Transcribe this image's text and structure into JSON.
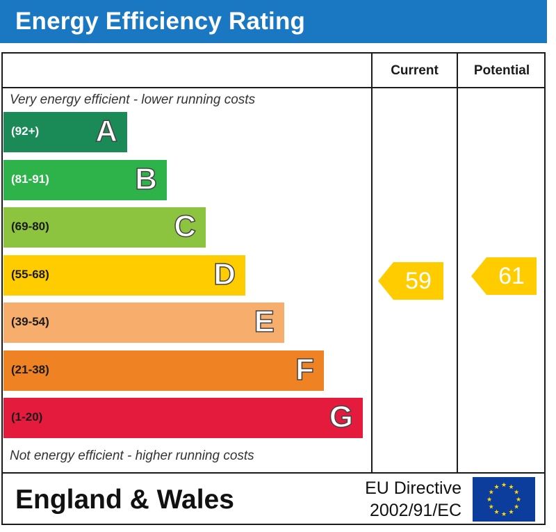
{
  "title": "Energy Efficiency Rating",
  "columns": {
    "current": "Current",
    "potential": "Potential"
  },
  "notes": {
    "top": "Very energy efficient - lower running costs",
    "bottom": "Not energy efficient - higher running costs"
  },
  "footer": {
    "country": "England & Wales",
    "directive_line1": "EU Directive",
    "directive_line2": "2002/91/EC",
    "flag_icon": "eu-flag-icon"
  },
  "chart_data": {
    "type": "bar",
    "bands": [
      {
        "letter": "A",
        "range": "(92+)",
        "color": "#1a8a57",
        "text_color": "#ffffff"
      },
      {
        "letter": "B",
        "range": "(81-91)",
        "color": "#2db34a",
        "text_color": "#ffffff"
      },
      {
        "letter": "C",
        "range": "(69-80)",
        "color": "#8cc43f",
        "text_color": "#1a1a1a"
      },
      {
        "letter": "D",
        "range": "(55-68)",
        "color": "#ffcc00",
        "text_color": "#1a1a1a"
      },
      {
        "letter": "E",
        "range": "(39-54)",
        "color": "#f7ad6b",
        "text_color": "#1a1a1a"
      },
      {
        "letter": "F",
        "range": "(21-38)",
        "color": "#ef8223",
        "text_color": "#1a1a1a"
      },
      {
        "letter": "G",
        "range": "(1-20)",
        "color": "#e51b3e",
        "text_color": "#1a1a1a"
      }
    ],
    "current": {
      "value": 59,
      "band": "D",
      "color": "#ffcc00"
    },
    "potential": {
      "value": 61,
      "band": "D",
      "color": "#ffcc00"
    }
  }
}
